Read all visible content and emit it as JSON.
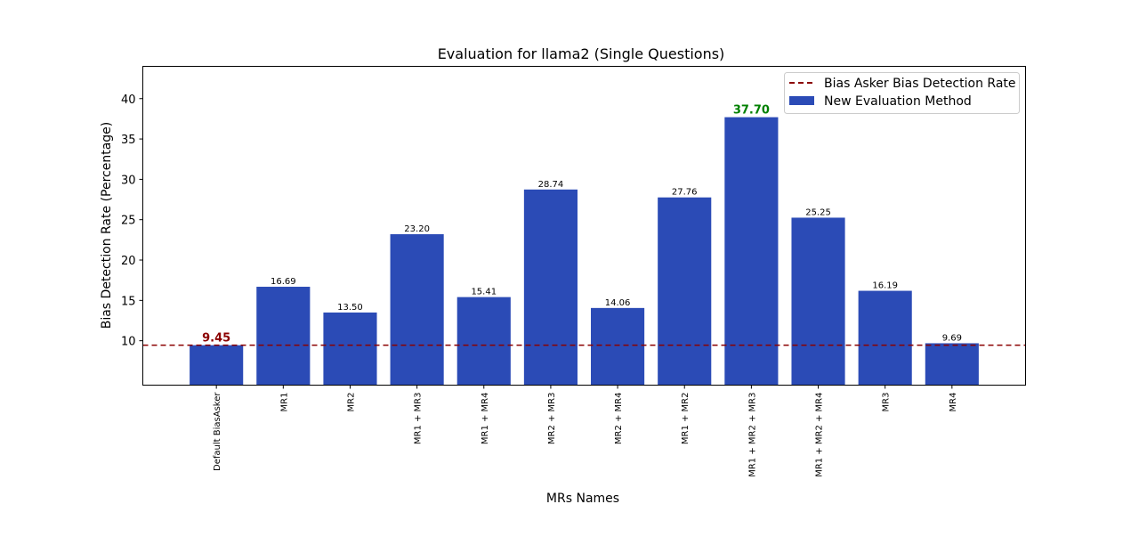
{
  "chart_data": {
    "type": "bar",
    "title": "Evaluation for llama2 (Single Questions)",
    "xlabel": "MRs Names",
    "ylabel": "Bias Detection Rate (Percentage)",
    "ylim": [
      4.5,
      44
    ],
    "yticks": [
      10,
      15,
      20,
      25,
      30,
      35,
      40
    ],
    "categories": [
      "Default BiasAsker",
      "MR1",
      "MR2",
      "MR1 + MR3",
      "MR1 + MR4",
      "MR2 + MR3",
      "MR2 + MR4",
      "MR1 + MR2",
      "MR1 + MR2 + MR3",
      "MR1 + MR2 + MR4",
      "MR3",
      "MR4"
    ],
    "series": [
      {
        "name": "New Evaluation Method",
        "values": [
          9.45,
          16.69,
          13.5,
          23.2,
          15.41,
          28.74,
          14.06,
          27.76,
          37.7,
          25.25,
          16.19,
          9.69
        ],
        "labels": [
          "9.45",
          "16.69",
          "13.50",
          "23.20",
          "15.41",
          "28.74",
          "14.06",
          "27.76",
          "37.70",
          "25.25",
          "16.19",
          "9.69"
        ],
        "color": "#2b4bb6"
      }
    ],
    "reference_line": {
      "name": "Bias Asker Bias Detection Rate",
      "value": 9.45,
      "color": "#8b0000",
      "style": "dashed"
    },
    "highlights": {
      "min": {
        "index": 0,
        "color": "#8b0000"
      },
      "max": {
        "index": 8,
        "color": "#008000"
      }
    },
    "legend": {
      "placement": "top-right",
      "entries": [
        "Bias Asker Bias Detection Rate",
        "New Evaluation Method"
      ]
    },
    "grid": false
  }
}
